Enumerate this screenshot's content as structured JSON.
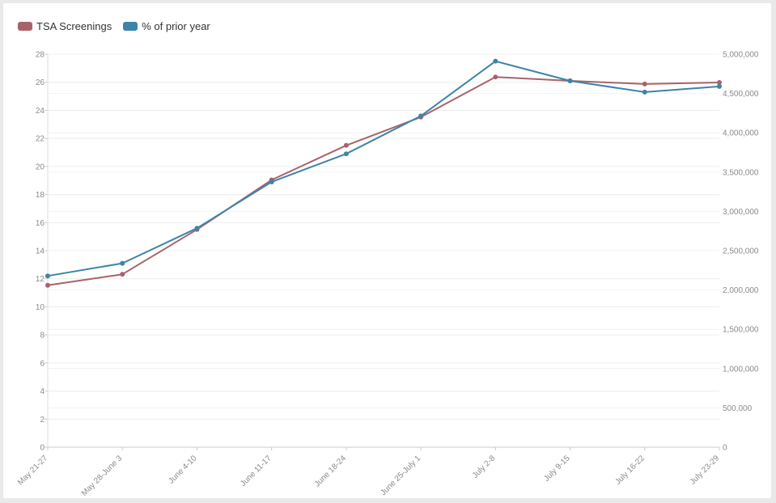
{
  "chart_data": {
    "type": "line",
    "categories": [
      "May 21-27",
      "May 28-June 3",
      "June 4-10",
      "June 11-17",
      "June 18-24",
      "June 25-July 1",
      "July 2-8",
      "July 9-15",
      "July 16-22",
      "July 23-29"
    ],
    "series": [
      {
        "name": "TSA Screenings",
        "color": "#a8636a",
        "axis": "right",
        "values": [
          2060000,
          2200000,
          2770000,
          3400000,
          3840000,
          4200000,
          4710000,
          4660000,
          4620000,
          4640000
        ]
      },
      {
        "name": "% of prior year",
        "color": "#3d84a8",
        "axis": "left",
        "values": [
          12.2,
          13.1,
          15.6,
          18.9,
          20.9,
          23.6,
          27.5,
          26.1,
          25.3,
          25.7
        ]
      }
    ],
    "y_left": {
      "ylim": [
        0,
        28
      ],
      "ticks": [
        "0",
        "2",
        "4",
        "6",
        "8",
        "10",
        "12",
        "14",
        "16",
        "18",
        "20",
        "22",
        "24",
        "26",
        "28"
      ]
    },
    "y_right": {
      "ylim": [
        0,
        5000000
      ],
      "ticks": [
        "0",
        "500,000",
        "1,000,000",
        "1,500,000",
        "2,000,000",
        "2,500,000",
        "3,000,000",
        "3,500,000",
        "4,000,000",
        "4,500,000",
        "5,000,000"
      ]
    },
    "grid": true,
    "legend_position": "top-left"
  }
}
